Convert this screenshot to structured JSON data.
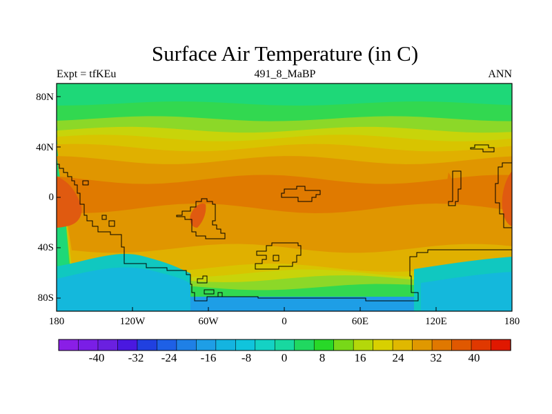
{
  "title": "Surface Air Temperature (in C)",
  "subtitle_left": "Expt = tfKEu",
  "subtitle_center": "491_8_MaBP",
  "subtitle_right": "ANN",
  "lat_labels": [
    "80N",
    "40N",
    "0",
    "40S",
    "80S"
  ],
  "lon_labels": [
    "180",
    "120W",
    "60W",
    "0",
    "60E",
    "120E",
    "180"
  ],
  "colorbar": {
    "labels": [
      "-40",
      "-32",
      "-24",
      "-16",
      "-8",
      "0",
      "8",
      "16",
      "24",
      "32",
      "40"
    ],
    "colors": [
      "#8a1ee6",
      "#7a1ee6",
      "#6a20e0",
      "#4a18e0",
      "#2040e0",
      "#1e60e6",
      "#1f80e6",
      "#1e9ee6",
      "#14b4e0",
      "#10c4dc",
      "#14d2c4",
      "#18d8a0",
      "#20d860",
      "#28d828",
      "#78d818",
      "#b4d80a",
      "#d8d000",
      "#e0b800",
      "#e09800",
      "#e07800",
      "#e05800",
      "#e03800",
      "#e01800"
    ]
  },
  "map_colors": {
    "polar_green": "#1ed878",
    "green": "#32d850",
    "light_green": "#8cd828",
    "yellow_green": "#c8d40a",
    "yellow": "#d8c400",
    "gold": "#e0b000",
    "orange": "#e09600",
    "deep_orange": "#e07a00",
    "red_orange": "#e05a10",
    "teal": "#10c8c0",
    "cyan": "#14b8dc",
    "blue": "#1e9ee6",
    "coast": "#000000"
  }
}
